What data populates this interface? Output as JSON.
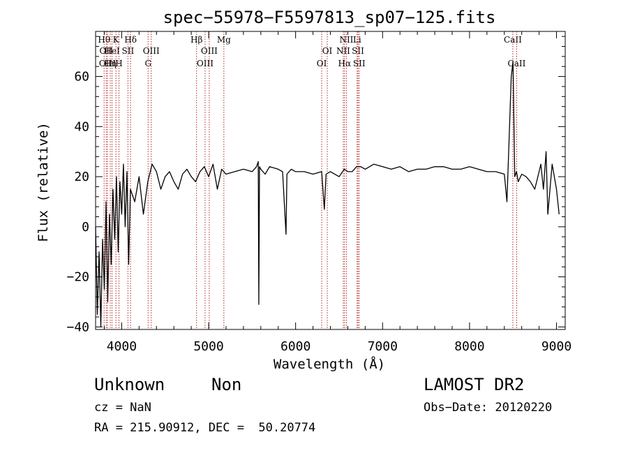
{
  "chart_data": {
    "type": "line",
    "title": "spec−55978−F5597813_sp07−125.fits",
    "xlabel": "Wavelength (Å)",
    "ylabel": "Flux (relative)",
    "xlim": [
      3700,
      9100
    ],
    "ylim": [
      -41,
      78
    ],
    "xticks": [
      4000,
      5000,
      6000,
      7000,
      8000,
      9000
    ],
    "yticks": [
      -40,
      -20,
      0,
      20,
      40,
      60
    ],
    "xtick_labels": [
      "4000",
      "5000",
      "6000",
      "7000",
      "8000",
      "9000"
    ],
    "ytick_labels": [
      "−40",
      "−20",
      "0",
      "20",
      "40",
      "60"
    ],
    "grid": false,
    "series": [
      {
        "color": "#000000",
        "x": [
          3700,
          3720,
          3740,
          3760,
          3780,
          3800,
          3820,
          3840,
          3860,
          3880,
          3900,
          3920,
          3940,
          3960,
          3980,
          4000,
          4020,
          4040,
          4060,
          4080,
          4100,
          4150,
          4200,
          4250,
          4300,
          4350,
          4400,
          4450,
          4500,
          4550,
          4600,
          4650,
          4700,
          4750,
          4800,
          4850,
          4900,
          4950,
          5000,
          5050,
          5100,
          5150,
          5200,
          5300,
          5400,
          5500,
          5550,
          5570,
          5577,
          5585,
          5600,
          5650,
          5700,
          5800,
          5850,
          5890,
          5900,
          5950,
          6000,
          6100,
          6200,
          6300,
          6330,
          6350,
          6400,
          6500,
          6560,
          6600,
          6650,
          6700,
          6750,
          6800,
          6900,
          7000,
          7100,
          7200,
          7300,
          7400,
          7500,
          7600,
          7700,
          7800,
          7900,
          8000,
          8100,
          8200,
          8300,
          8400,
          8430,
          8450,
          8480,
          8500,
          8520,
          8540,
          8560,
          8600,
          8650,
          8700,
          8750,
          8800,
          8820,
          8850,
          8880,
          8900,
          8950,
          9000,
          9030
        ],
        "y": [
          0,
          -35,
          -10,
          -40,
          -5,
          -25,
          10,
          -30,
          5,
          -15,
          15,
          -5,
          20,
          -10,
          18,
          5,
          25,
          0,
          22,
          -15,
          15,
          10,
          20,
          5,
          18,
          25,
          22,
          15,
          20,
          22,
          18,
          15,
          21,
          23,
          20,
          18,
          22,
          24,
          20,
          25,
          15,
          23,
          21,
          22,
          23,
          22,
          24,
          26,
          -31,
          24,
          23,
          21,
          24,
          23,
          22,
          -3,
          21,
          23,
          22,
          22,
          21,
          22,
          7,
          21,
          22,
          20,
          23,
          22,
          22,
          24,
          24,
          23,
          25,
          24,
          23,
          24,
          22,
          23,
          23,
          24,
          24,
          23,
          23,
          24,
          23,
          22,
          22,
          21,
          10,
          30,
          60,
          66,
          20,
          22,
          18,
          21,
          20,
          18,
          15,
          22,
          25,
          15,
          30,
          5,
          25,
          15,
          5
        ]
      }
    ],
    "lines": [
      {
        "x": 3798,
        "label": "Hθ",
        "row": 0
      },
      {
        "x": 3822,
        "label": "OII",
        "row": 1
      },
      {
        "x": 3836,
        "label": "OIII",
        "row": 2
      },
      {
        "x": 3869,
        "label": "Hη",
        "row": 2
      },
      {
        "x": 3889,
        "label": "HeI",
        "row": 1
      },
      {
        "x": 3934,
        "label": "K",
        "row": 0
      },
      {
        "x": 3969,
        "label": "H",
        "row": 2
      },
      {
        "x": 4072,
        "label": "SII",
        "row": 1
      },
      {
        "x": 4102,
        "label": "Hδ",
        "row": 0
      },
      {
        "x": 4304,
        "label": "G",
        "row": 2
      },
      {
        "x": 4340,
        "label": "OIII",
        "row": 1
      },
      {
        "x": 4861,
        "label": "Hβ",
        "row": 0
      },
      {
        "x": 4959,
        "label": "OIII",
        "row": 2
      },
      {
        "x": 5007,
        "label": "OIII",
        "row": 1
      },
      {
        "x": 5175,
        "label": "Mg",
        "row": 0
      },
      {
        "x": 6300,
        "label": "OI",
        "row": 2
      },
      {
        "x": 6364,
        "label": "OI",
        "row": 1
      },
      {
        "x": 6548,
        "label": "NII",
        "row": 1
      },
      {
        "x": 6563,
        "label": "Hα",
        "row": 2
      },
      {
        "x": 6584,
        "label": "NII",
        "row": 0
      },
      {
        "x": 6707,
        "label": "Li",
        "row": 0
      },
      {
        "x": 6717,
        "label": "SII",
        "row": 1
      },
      {
        "x": 6731,
        "label": "SII",
        "row": 2
      },
      {
        "x": 8498,
        "label": "CaII",
        "row": 0
      },
      {
        "x": 8542,
        "label": "CaII",
        "row": 2
      }
    ]
  },
  "info": {
    "class": "Unknown",
    "subclass": "Non",
    "survey": "LAMOST DR2",
    "cz": "cz = NaN",
    "obs_date": "Obs−Date: 20120220",
    "coords": "RA = 215.90912, DEC =  50.20774"
  }
}
